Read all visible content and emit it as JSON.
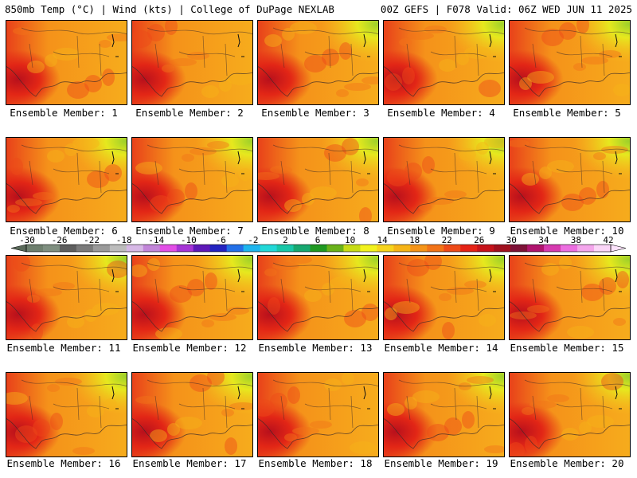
{
  "header": {
    "left": "850mb Temp (°C) | Wind (kts) | College of DuPage NEXLAB",
    "right": "00Z GEFS | F078 Valid: 06Z WED JUN 11 2025"
  },
  "members": [
    {
      "label": "Ensemble Member: 1",
      "warm_west": 1,
      "cool_ne": 0,
      "hot_sw": 1
    },
    {
      "label": "Ensemble Member: 2",
      "warm_west": 1,
      "cool_ne": 0,
      "hot_sw": 1
    },
    {
      "label": "Ensemble Member: 3",
      "warm_west": 1,
      "cool_ne": 1,
      "hot_sw": 1
    },
    {
      "label": "Ensemble Member: 4",
      "warm_west": 1,
      "cool_ne": 1,
      "hot_sw": 1
    },
    {
      "label": "Ensemble Member: 5",
      "warm_west": 1,
      "cool_ne": 1,
      "hot_sw": 1
    },
    {
      "label": "Ensemble Member: 6",
      "warm_west": 1,
      "cool_ne": 1,
      "hot_sw": 1
    },
    {
      "label": "Ensemble Member: 7",
      "warm_west": 0,
      "cool_ne": 1,
      "hot_sw": 1
    },
    {
      "label": "Ensemble Member: 8",
      "warm_west": 1,
      "cool_ne": 1,
      "hot_sw": 1
    },
    {
      "label": "Ensemble Member: 9",
      "warm_west": 1,
      "cool_ne": 1,
      "hot_sw": 1
    },
    {
      "label": "Ensemble Member: 10",
      "warm_west": 1,
      "cool_ne": 1,
      "hot_sw": 1
    },
    {
      "label": "Ensemble Member: 11",
      "warm_west": 1,
      "cool_ne": 1,
      "hot_sw": 1
    },
    {
      "label": "Ensemble Member: 12",
      "warm_west": 1,
      "cool_ne": 1,
      "hot_sw": 1
    },
    {
      "label": "Ensemble Member: 13",
      "warm_west": 1,
      "cool_ne": 1,
      "hot_sw": 1
    },
    {
      "label": "Ensemble Member: 14",
      "warm_west": 1,
      "cool_ne": 1,
      "hot_sw": 1
    },
    {
      "label": "Ensemble Member: 15",
      "warm_west": 1,
      "cool_ne": 1,
      "hot_sw": 1
    },
    {
      "label": "Ensemble Member: 16",
      "warm_west": 1,
      "cool_ne": 1,
      "hot_sw": 1
    },
    {
      "label": "Ensemble Member: 17",
      "warm_west": 1,
      "cool_ne": 1,
      "hot_sw": 1
    },
    {
      "label": "Ensemble Member: 18",
      "warm_west": 1,
      "cool_ne": 0,
      "hot_sw": 1
    },
    {
      "label": "Ensemble Member: 19",
      "warm_west": 1,
      "cool_ne": 1,
      "hot_sw": 1
    },
    {
      "label": "Ensemble Member: 20",
      "warm_west": 1,
      "cool_ne": 1,
      "hot_sw": 1
    }
  ],
  "colorbar": {
    "ticks": [
      "-30",
      "-26",
      "-22",
      "-18",
      "-14",
      "-10",
      "-6",
      "-2",
      "2",
      "6",
      "10",
      "14",
      "18",
      "22",
      "26",
      "30",
      "34",
      "38",
      "42"
    ],
    "colors": [
      "#6e7f6e",
      "#7f8f80",
      "#5e5e5e",
      "#7a7a7a",
      "#9a9a9a",
      "#bcbcbc",
      "#d7b8e6",
      "#c286d9",
      "#e24ee6",
      "#a634d6",
      "#5e19b8",
      "#2323c0",
      "#2370e8",
      "#1eb5ee",
      "#22d8d8",
      "#18c7a8",
      "#17a870",
      "#1f9922",
      "#69b21a",
      "#c7dc16",
      "#f2f21e",
      "#f7d41c",
      "#f6b417",
      "#f59418",
      "#f27318",
      "#ee4a18",
      "#e52216",
      "#c6121a",
      "#a0101e",
      "#7e1238",
      "#b0146e",
      "#d63ab0",
      "#ec6ee0",
      "#f4a6ec",
      "#fbd6f8"
    ],
    "left_arrow_color": "#5a6a5a",
    "right_arrow_color": "#fbe2fb"
  }
}
